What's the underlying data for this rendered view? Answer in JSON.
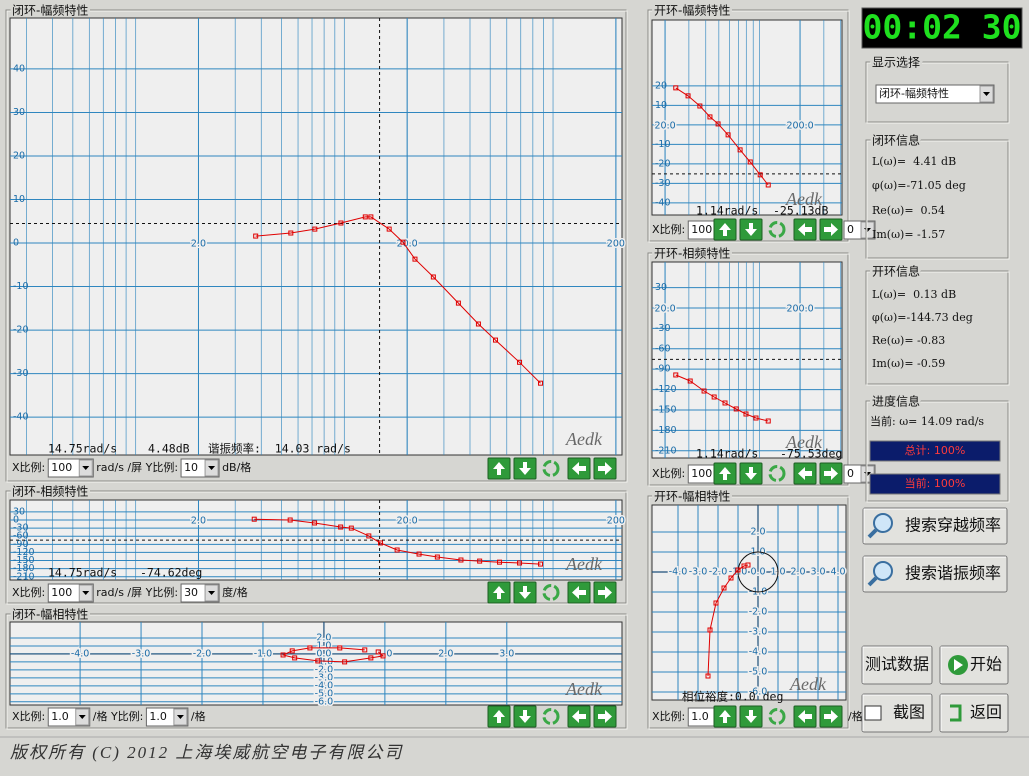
{
  "panels": {
    "cl_mag": {
      "title": "闭环-幅频特性",
      "xlog": true,
      "xlim": [
        0.25,
        214
      ],
      "ylim": [
        -48.7,
        51.7
      ],
      "xticks": [
        {
          "value": 2,
          "label": "2.0"
        },
        {
          "value": 20,
          "label": "20.0"
        },
        {
          "value": 200,
          "label": "200"
        }
      ],
      "yticks": [
        40,
        30,
        20,
        10,
        0,
        -10,
        -20,
        -30,
        -40
      ],
      "curve": {
        "x": [
          3.76,
          5.54,
          7.22,
          9.63,
          12.6,
          13.4,
          16.4,
          19.1,
          21.8,
          26.7,
          35.2,
          43.9,
          53.0,
          69.1,
          87.1
        ],
        "y": [
          1.6,
          2.3,
          3.2,
          4.6,
          6.0,
          6.0,
          3.2,
          0.2,
          -3.7,
          -7.8,
          -13.8,
          -18.6,
          -22.3,
          -27.4,
          -32.2
        ]
      },
      "cursor": [
        14.75,
        4.48
      ],
      "readout": [
        "14.75rad/s",
        "4.48dB",
        "谐振频率:  14.03 rad/s"
      ],
      "watermark": "Aedk",
      "controls": [
        {
          "text": "X比例:"
        },
        {
          "text": "100",
          "select": true
        },
        {
          "text": "rad/s /屏 Y比例:"
        },
        {
          "text": "10",
          "select": true
        },
        {
          "text": "dB/格"
        }
      ]
    },
    "cl_phase": {
      "title": "闭环-相频特性",
      "xlog": true,
      "xlim": [
        0.25,
        214
      ],
      "ylim": [
        -222,
        74
      ],
      "xticks": [
        {
          "value": 2,
          "label": "2.0"
        },
        {
          "value": 20,
          "label": "20.0"
        },
        {
          "value": 200,
          "label": "200"
        }
      ],
      "yticks": [
        30,
        0,
        -30,
        -60,
        -90,
        -120,
        -150,
        -180,
        -210
      ],
      "curve": {
        "x": [
          3.7,
          5.5,
          7.2,
          9.6,
          10.8,
          13.1,
          14.9,
          17.9,
          22.8,
          27.9,
          36.2,
          44.5,
          55.4,
          69.1,
          87.1
        ],
        "y": [
          3,
          0,
          -11,
          -26,
          -30,
          -59,
          -85,
          -111,
          -126,
          -137,
          -148,
          -152,
          -156,
          -159,
          -163
        ]
      },
      "cursor": [
        14.75,
        -74.62
      ],
      "readout": [
        "14.75rad/s",
        "-74.62deg"
      ],
      "watermark": "Aedk",
      "controls": [
        {
          "text": "X比例:"
        },
        {
          "text": "100",
          "select": true
        },
        {
          "text": "rad/s /屏 Y比例:"
        },
        {
          "text": "30",
          "select": true
        },
        {
          "text": "度/格"
        }
      ]
    },
    "cl_nyq": {
      "title": "闭环-幅相特性",
      "xlog": false,
      "xlim": [
        -5.15,
        4.89
      ],
      "ylim": [
        -6.4,
        4
      ],
      "xticks": [
        {
          "value": -4,
          "label": "-4.0"
        },
        {
          "value": -3,
          "label": "-3.0"
        },
        {
          "value": -2,
          "label": "-2.0"
        },
        {
          "value": -1,
          "label": "-1.0"
        },
        {
          "value": 1,
          "label": "1.0"
        },
        {
          "value": 2,
          "label": "2.0"
        },
        {
          "value": 3,
          "label": "3.0"
        }
      ],
      "yticks": [
        {
          "value": 2,
          "label": "2.0"
        },
        {
          "value": 1,
          "label": "1.0"
        },
        {
          "value": 0,
          "label": "0.0"
        },
        {
          "value": -1,
          "label": "-1.0"
        },
        {
          "value": -2,
          "label": "-2.0"
        },
        {
          "value": -3,
          "label": "-3.0"
        },
        {
          "value": -4,
          "label": "-4.0"
        },
        {
          "value": -5,
          "label": "-5.0"
        },
        {
          "value": -6,
          "label": "-6.0"
        }
      ],
      "curve": {
        "x": [
          0.89,
          0.97,
          0.77,
          0.34,
          -0.1,
          -0.48,
          -0.67,
          -0.52,
          -0.23,
          0.26,
          0.67
        ],
        "y": [
          0.25,
          -0.25,
          -0.5,
          -1.0,
          -0.88,
          -0.5,
          -0.13,
          0.38,
          0.75,
          0.75,
          0.5
        ]
      },
      "watermark": "Aedk",
      "controls": [
        {
          "text": "X比例:"
        },
        {
          "text": "1.0",
          "select": true
        },
        {
          "text": "/格 Y比例:"
        },
        {
          "text": "1.0",
          "select": true
        },
        {
          "text": "/格"
        }
      ]
    },
    "ol_mag": {
      "title": "开环-幅频特性",
      "xlog": true,
      "xlim": [
        16,
        409
      ],
      "ylim": [
        -46.2,
        53.8
      ],
      "xticks": [
        {
          "value": 20,
          "label": "20.0"
        },
        {
          "value": 200,
          "label": "200.0"
        }
      ],
      "yticks": [
        20,
        10,
        0,
        -10,
        -20,
        -30,
        -40
      ],
      "curve": {
        "x": [
          24.0,
          29.6,
          36.2,
          43.0,
          49.4,
          58.6,
          71.9,
          85.5,
          101.3,
          116.2
        ],
        "y": [
          19.0,
          14.9,
          9.7,
          4.1,
          0.5,
          -5.1,
          -12.8,
          -19.0,
          -25.6,
          -30.8
        ]
      },
      "cursor": [
        1.14,
        -25.13
      ],
      "readout": [
        "1.14rad/s",
        "-25.13dB"
      ],
      "watermark": "Aedk",
      "controls": [
        {
          "text": "X比例:"
        },
        {
          "text": "100",
          "select": true
        }
      ],
      "controls_after": [
        {
          "text": "0",
          "select": true
        }
      ]
    },
    "ol_phase": {
      "title": "开环-相频特性",
      "xlog": true,
      "xlim": [
        16,
        409
      ],
      "ylim": [
        -220.6,
        67.6
      ],
      "xticks": [
        {
          "value": 20,
          "label": "20.0"
        },
        {
          "value": 200,
          "label": "200.0"
        }
      ],
      "yticks": [
        30,
        0,
        -30,
        -60,
        -90,
        -120,
        -150,
        -180,
        -210
      ],
      "curve": {
        "x": [
          24.0,
          30.7,
          38.9,
          46.2,
          55.6,
          67.3,
          79.5,
          94.3,
          116.2
        ],
        "y": [
          -98.5,
          -107.4,
          -122.1,
          -130.9,
          -139.7,
          -148.5,
          -155.9,
          -161.8,
          -166.2
        ]
      },
      "cursor": [
        1.14,
        -75.53
      ],
      "readout": [
        "1.14rad/s",
        "-75.53deg"
      ],
      "watermark": "Aedk",
      "controls": [
        {
          "text": "X比例:"
        },
        {
          "text": "100",
          "select": true
        }
      ],
      "controls_after": [
        {
          "text": "0",
          "select": true
        }
      ]
    },
    "ol_nyq": {
      "title": "开环-幅相特性",
      "xlog": false,
      "xlim": [
        -5.3,
        4.4
      ],
      "ylim": [
        -6.4,
        3.35
      ],
      "xticks": [
        {
          "value": -4,
          "label": "-4.0"
        },
        {
          "value": -3,
          "label": "-3.0"
        },
        {
          "value": -2,
          "label": "-2.0"
        },
        {
          "value": -1,
          "label": "-1.0"
        },
        {
          "value": 0,
          "label": "0.0"
        },
        {
          "value": 1,
          "label": "1.0"
        },
        {
          "value": 2,
          "label": "2.0"
        },
        {
          "value": 3,
          "label": "3.0"
        },
        {
          "value": 4,
          "label": "4.0"
        }
      ],
      "yticks": [
        {
          "value": 2,
          "label": "2.0"
        },
        {
          "value": 1,
          "label": "1.0"
        },
        {
          "value": -1,
          "label": "-1.0"
        },
        {
          "value": -2,
          "label": "-2.0"
        },
        {
          "value": -3,
          "label": "-3.0"
        },
        {
          "value": -4,
          "label": "-4.0"
        },
        {
          "value": -5,
          "label": "-5.0"
        },
        {
          "value": -6,
          "label": "-6.0"
        }
      ],
      "curve": {
        "x": [
          -2.5,
          -2.4,
          -2.1,
          -1.7,
          -1.35,
          -1.0,
          -0.7,
          -0.5
        ],
        "y": [
          -5.2,
          -2.9,
          -1.55,
          -0.8,
          -0.3,
          0.1,
          0.3,
          0.35
        ]
      },
      "readout": [
        "相位裕度:0.0 deg"
      ],
      "watermark": "Aedk",
      "controls": [
        {
          "text": "X比例:"
        },
        {
          "text": "1.0",
          "select": true
        }
      ],
      "controls_after": [
        {
          "text": "/格"
        }
      ]
    }
  },
  "sidebar": {
    "timer": "00:02 30",
    "display": {
      "title": "显示选择",
      "select": "闭环-幅频特性"
    },
    "closed_info": {
      "title": "闭环信息",
      "lines": [
        "L(ω)=  4.41 dB",
        "φ(ω)=-71.05 deg",
        "Re(ω)=  0.54",
        "Im(ω)= -1.57"
      ]
    },
    "open_info": {
      "title": "开环信息",
      "lines": [
        "L(ω)=  0.13 dB",
        "φ(ω)=-144.73 deg",
        "Re(ω)= -0.83",
        "Im(ω)= -0.59"
      ]
    },
    "progress": {
      "title": "进度信息",
      "current": "当前: ω= 14.09 rad/s",
      "bars": [
        "总计: 100%",
        "当前: 100%"
      ]
    },
    "buttons": [
      "搜索穿越频率",
      "搜索谐振频率",
      "测试数据",
      "开始",
      "截图",
      "返回"
    ]
  },
  "footer": "版权所有 (C) 2012 上海埃威航空电子有限公司"
}
